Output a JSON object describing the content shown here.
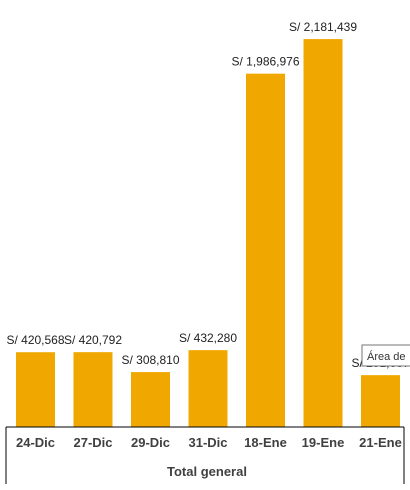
{
  "chart_data": {
    "type": "bar",
    "categories": [
      "24-Dic",
      "27-Dic",
      "29-Dic",
      "31-Dic",
      "18-Ene",
      "19-Ene",
      "21-Ene"
    ],
    "values": [
      420568,
      420792,
      308810,
      432280,
      1986976,
      2181439,
      291667
    ],
    "data_labels": [
      "S/ 420,568",
      "S/ 420,792",
      "S/ 308,810",
      "S/ 432,280",
      "S/ 1,986,976",
      "S/ 2,181,439",
      "S/ 291,667"
    ],
    "xlabel": "Total general",
    "ylim": [
      0,
      2300000
    ],
    "grid": false,
    "bar_color": "#F0A800"
  },
  "tooltip": {
    "text": "Área de"
  }
}
